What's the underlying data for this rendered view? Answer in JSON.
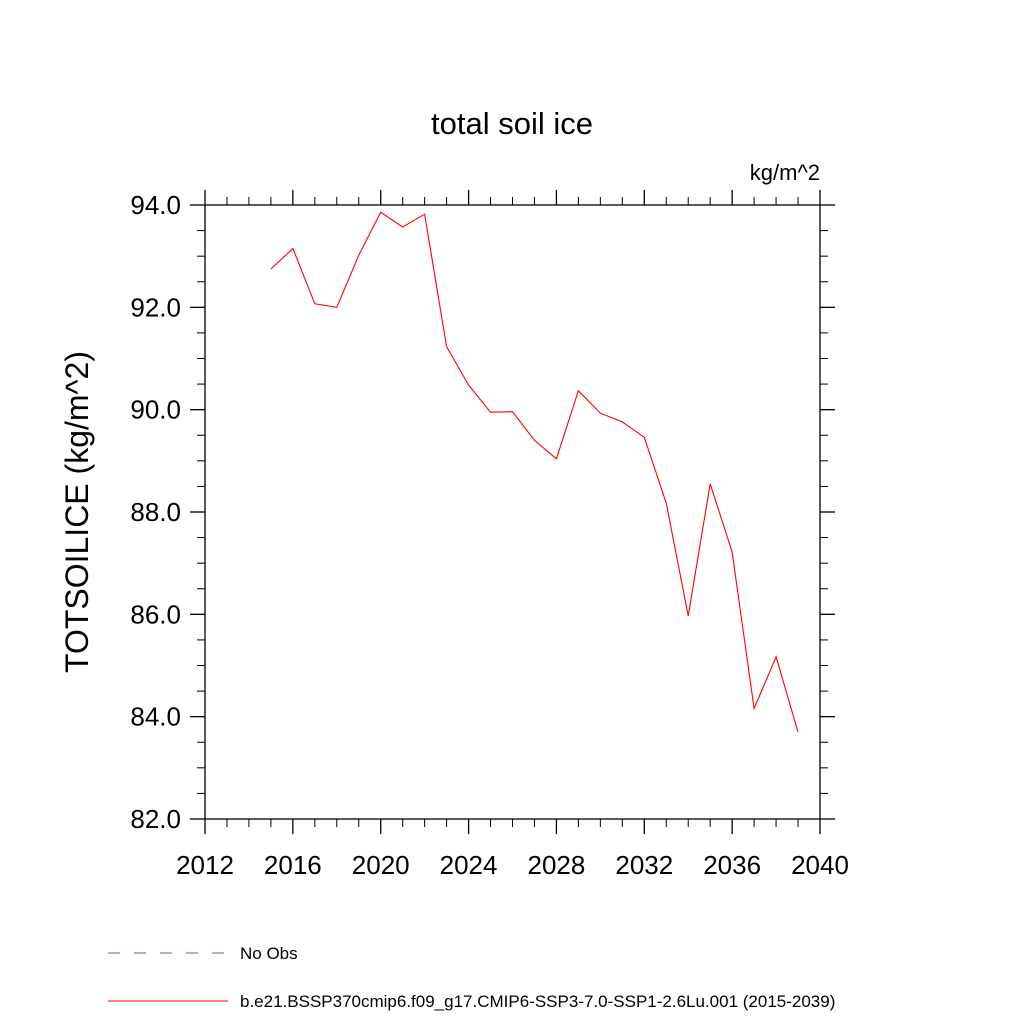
{
  "chart_data": {
    "type": "line",
    "title": "total soil ice",
    "units": "kg/m^2",
    "xlabel": "",
    "ylabel": "TOTSOILICE  (kg/m^2)",
    "xlim": [
      2012,
      2040
    ],
    "ylim": [
      82.0,
      94.0
    ],
    "x_ticks": [
      2012,
      2016,
      2020,
      2024,
      2028,
      2032,
      2036,
      2040
    ],
    "x_tick_labels": [
      "2012",
      "2016",
      "2020",
      "2024",
      "2028",
      "2032",
      "2036",
      "2040"
    ],
    "y_ticks": [
      82.0,
      84.0,
      86.0,
      88.0,
      90.0,
      92.0,
      94.0
    ],
    "y_tick_labels": [
      "82.0",
      "84.0",
      "86.0",
      "88.0",
      "90.0",
      "92.0",
      "94.0"
    ],
    "grid": false,
    "legend_position": "bottom-left",
    "series": [
      {
        "name": "b.e21.BSSP370cmip6.f09_g17.CMIP6-SSP3-7.0-SSP1-2.6Lu.001 (2015-2039)",
        "color": "#ff0000",
        "style": "solid",
        "x": [
          2015,
          2016,
          2017,
          2018,
          2019,
          2020,
          2021,
          2022,
          2023,
          2024,
          2025,
          2026,
          2027,
          2028,
          2029,
          2030,
          2031,
          2032,
          2033,
          2034,
          2035,
          2036,
          2037,
          2038,
          2039
        ],
        "y": [
          92.75,
          93.15,
          92.07,
          92.0,
          93.02,
          93.86,
          93.57,
          93.82,
          91.23,
          90.48,
          89.95,
          89.96,
          89.4,
          89.04,
          90.37,
          89.93,
          89.76,
          89.46,
          88.17,
          85.97,
          88.55,
          87.22,
          84.16,
          85.17,
          83.7
        ]
      },
      {
        "name": "No Obs",
        "color": "#6a5acd",
        "style": "dashed",
        "x": [],
        "y": []
      }
    ]
  }
}
